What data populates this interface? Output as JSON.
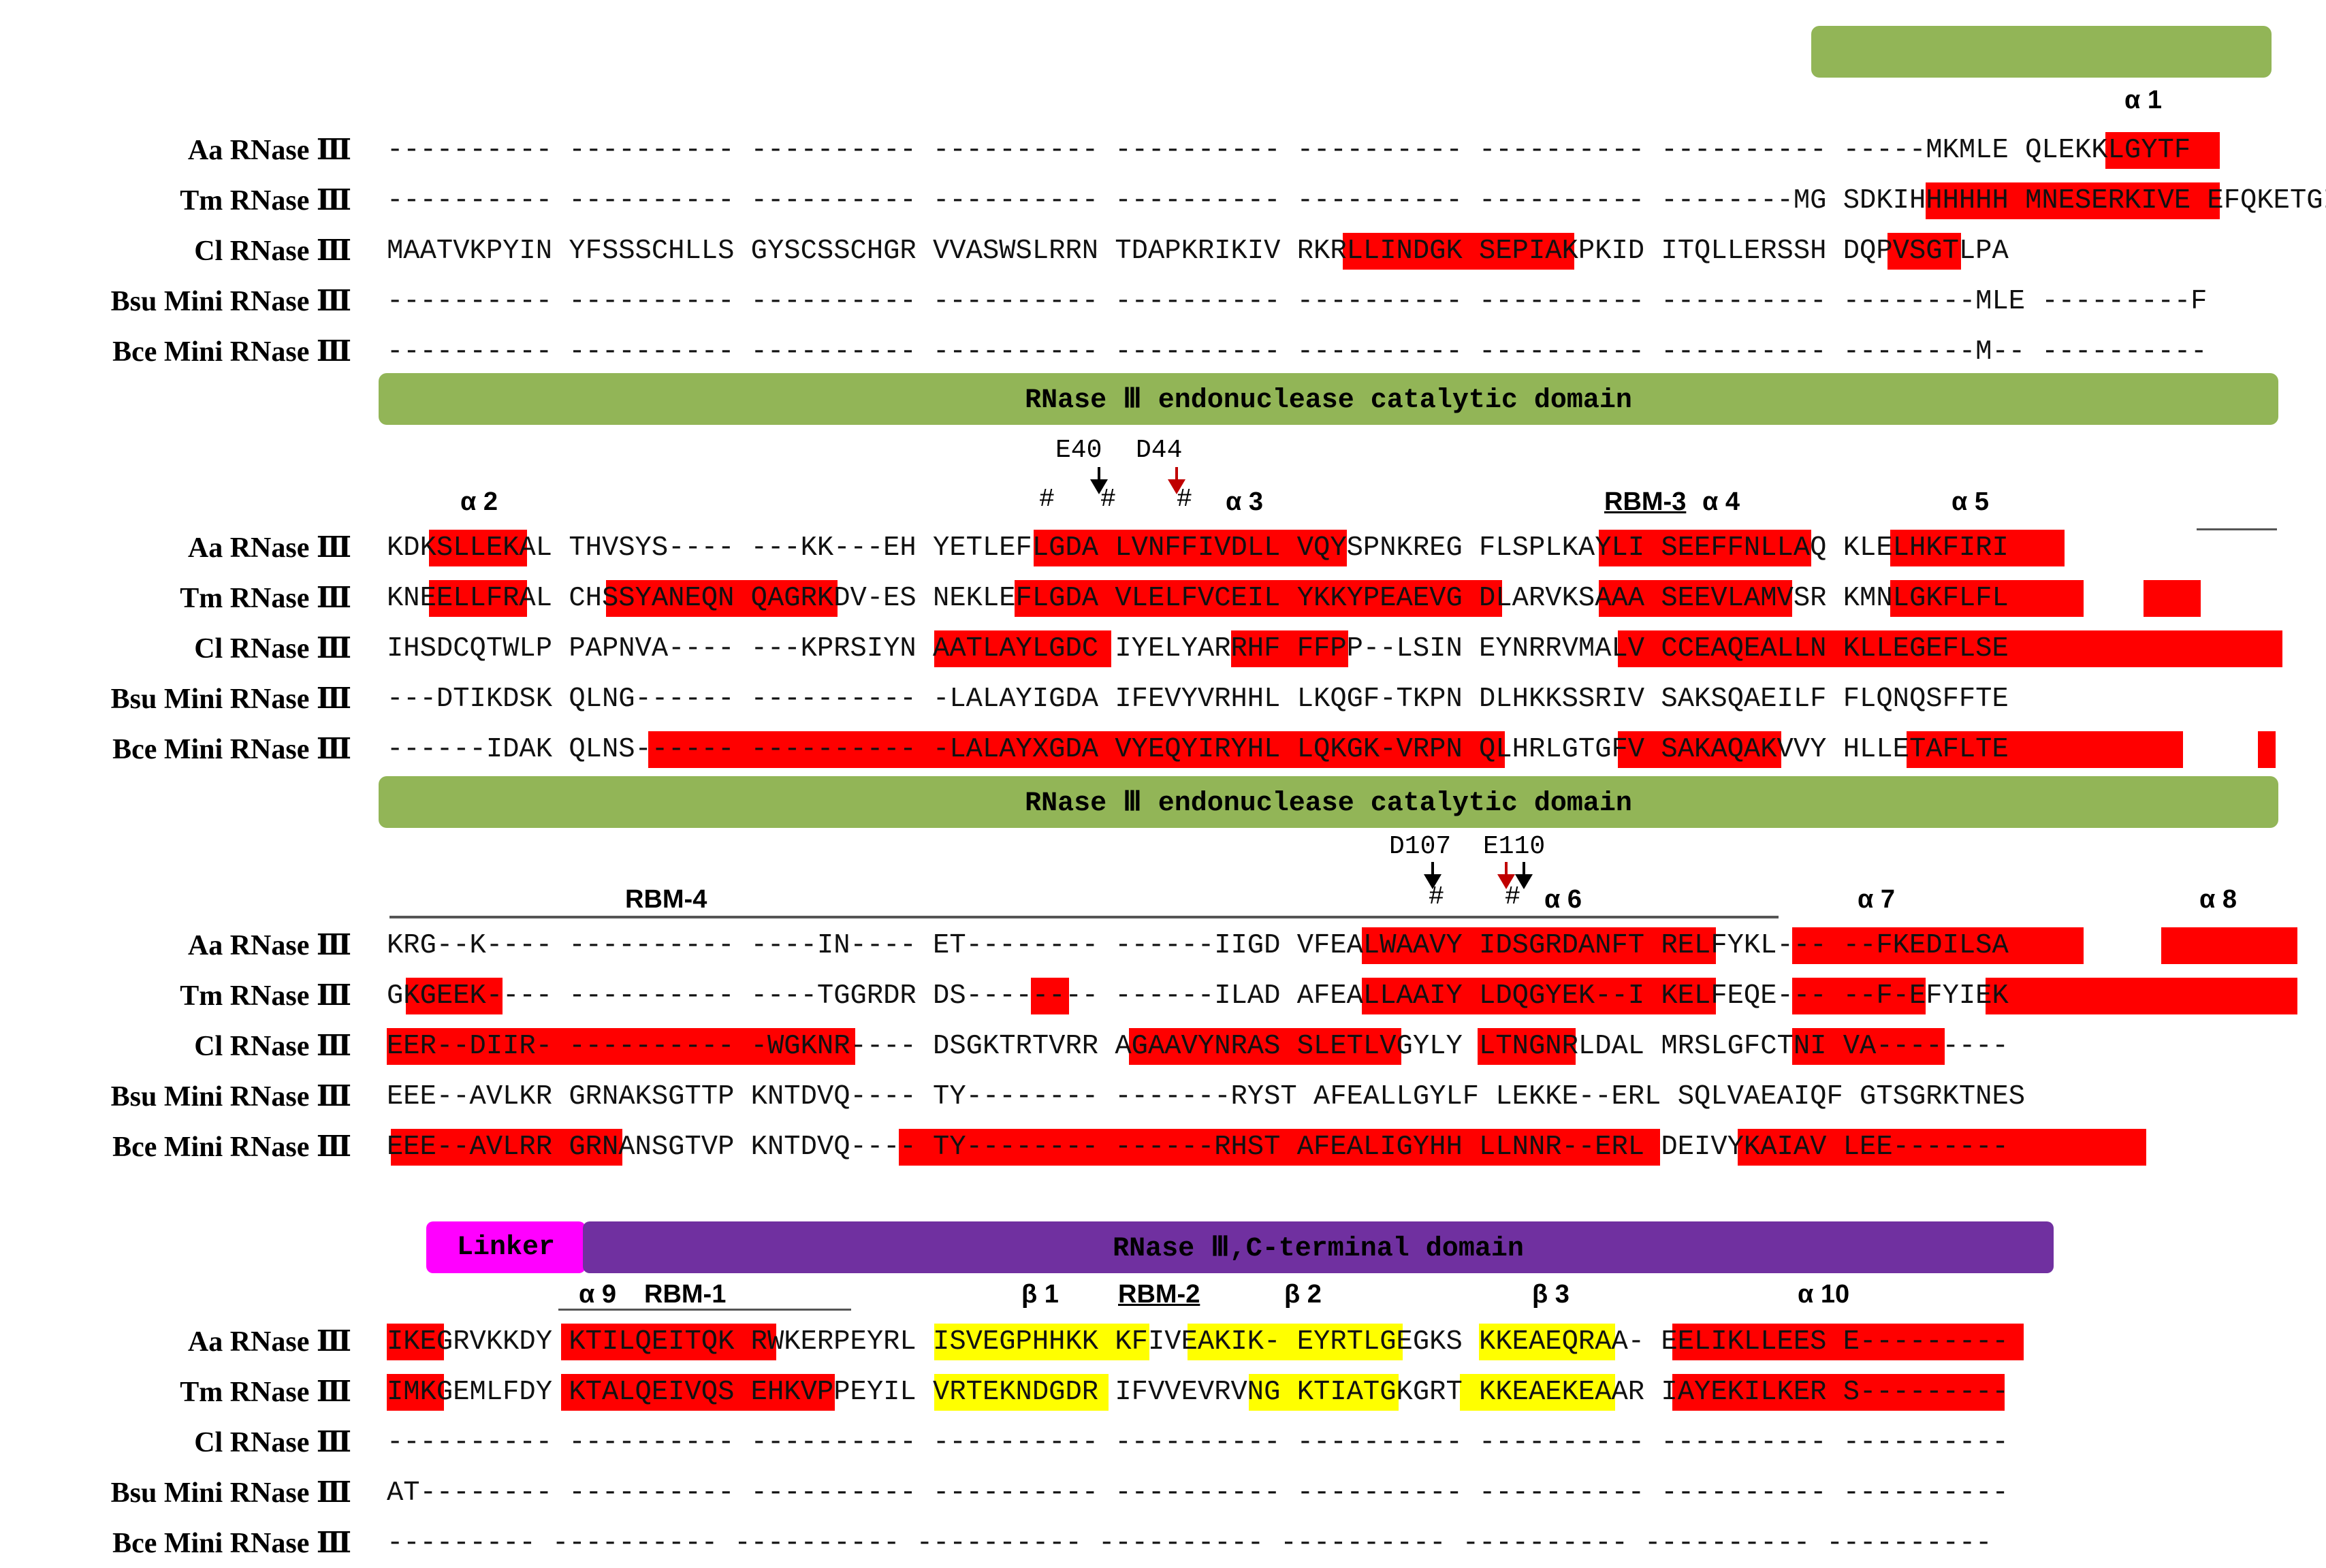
{
  "top_domain": {
    "label": ""
  },
  "catalytic_domain_1": {
    "label": "RNase Ⅲ endonuclease catalytic domain"
  },
  "catalytic_domain_2": {
    "label": "RNase Ⅲ endonuclease catalytic domain"
  },
  "linker": {
    "label": "Linker"
  },
  "cterm_domain": {
    "label": "RNase Ⅲ,C-terminal domain"
  },
  "species": [
    "Aa RNase Ⅲ",
    "Tm RNase Ⅲ",
    "Cl RNase Ⅲ",
    "Bsu Mini RNase Ⅲ",
    "Bce Mini RNase Ⅲ"
  ],
  "block1": {
    "rows": [
      "---------- ---------- ---------- ---------- ---------- ---------- ---------- ---------- -----MKMLE QLEKKLGYTF",
      "---------- ---------- ---------- ---------- ---------- ---------- ---------- --------MG SDKIHHHHHH MNESERKIVE EFQKETGINF",
      "MAATVKPYIN YFSSSCHLLS GYSCSSCHGR VVASWSLRRN TDAPKRIKIV RKRLLINDGK SEPIAKPKID ITQLLERSSH DQPVSGTLPA",
      "---------- ---------- ---------- ---------- ---------- ---------- ---------- ---------- --------MLE ---------F",
      "---------- ---------- ---------- ---------- ---------- ---------- ---------- ---------- --------M-- ----------"
    ],
    "labels": {
      "a1": "α 1"
    }
  },
  "block2": {
    "rows": [
      "KDKSLLEKAL THVSYS---- ---KK---EH YETLEFLGDA LVNFFIVDLL VQYSPNKREG FLSPLKAYLI SEEFFNLLAQ KLELHKFIRI",
      "KNEELLFRAL CHSSYANEQN QAGRKDV-ES NEKLEFLGDA VLELFVCEIL YKKYPEAEVG DLARVKSAAA SEEVLAMVSR KMNLGKFLFL",
      "IHSDCQTWLP PAPNVA---- ---KPRSIYN AATLAYLGDC IYELYARRHF FFPP--LSIN EYNRRVMALV CCEAQEALLN KLLEGEFLSE",
      "---DTIKDSK QLNG------ ---------- -LALAYIGDA IFEVYVRHHL LKQGF-TKPN DLHKKSSRIV SAKSQAEILF FLQNQSFFTE",
      "------IDAK QLNS------ ---------- -LALAYXGDA VYEQYIRYHL LQKGK-VRPN QLHRLGTGFV SAKAQAKVVY HLLETAFLTE"
    ],
    "labels": {
      "e40": "E40",
      "d44": "D44",
      "a2": "α 2",
      "a3": "α 3",
      "rbm3": "RBM-3",
      "a4": "α 4",
      "a5": "α 5",
      "hash": "#"
    }
  },
  "block3": {
    "rows": [
      "KRG--K---- ---------- ----IN---- ET-------- ------IIGD VFEALWAAVY IDSGRDANFT RELFYKL--- --FKEDILSA",
      "GKGEEK---- ---------- ----TGGRDR DS-------- ------ILAD AFEALLAAIY LDQGYEK--I KELFEQE--- --F-EFYIEK",
      "EER--DIIR- ---------- -WGKNR---- DSGKTRTVRR AGAAVYNRAS SLETLVGYLY LTNGNRLDAL MRSLGFCTNI VA--------",
      "EEE--AVLKR GRNAKSGTTP KNTDVQ---- TY-------- -------RYST AFEALLGYLF LEKKE--ERL SQLVAEAIQF GTSGRKTNES",
      "EEE--AVLRR GRNANSGTVP KNTDVQ---- TY-------- ------RHST AFEALIGYHH LLNNR--ERL DEIVYKAIAV LEE-------"
    ],
    "labels": {
      "rbm4": "RBM-4",
      "d107": "D107",
      "e110": "E110",
      "a6": "α 6",
      "a7": "α 7",
      "a8": "α 8",
      "hash": "#"
    }
  },
  "block4": {
    "rows": [
      "IKEGRVKKDY KTILQEITQK RWKERPEYRL ISVEGPHHKK KFIVEAKIK- EYRTLGEGKS KKEAEQRAA- EELIKLLEES E---------",
      "IMKGEMLFDY KTALQEIVQS EHKVPPEYIL VRTEKNDGDR IFVVEVRVNG KTIATGKGRT KKEAEKEAAR IAYEKILKER S---------",
      "---------- ---------- ---------- ---------- ---------- ---------- ---------- ---------- ----------",
      "AT-------- ---------- ---------- ---------- ---------- ---------- ---------- ---------- ----------",
      "--------- ---------- ---------- ---------- ---------- ---------- ---------- ---------- ----------"
    ],
    "labels": {
      "a9": "α 9",
      "rbm1": "RBM-1",
      "b1": "β 1",
      "rbm2": "RBM-2",
      "b2": "β 2",
      "b3": "β 3",
      "a10": "α 10"
    }
  },
  "colors": {
    "red": "#ff0000",
    "yellow": "#ffff00",
    "green": "#92b557",
    "purple": "#7030a0",
    "magenta": "#ff00ff"
  }
}
